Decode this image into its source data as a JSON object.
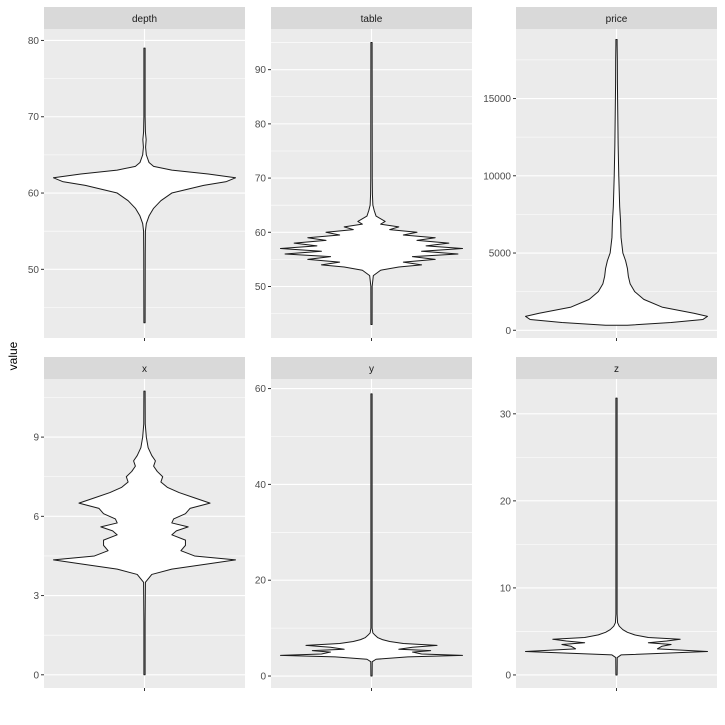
{
  "chart_data": {
    "type": "violin",
    "ylabel": "value",
    "xlabel": "",
    "grid": true,
    "colors": {
      "panel_bg": "#ebebeb",
      "strip_bg": "#d9d9d9",
      "grid": "#ffffff",
      "outline": "#1a1a1a",
      "fill": "#ffffff"
    },
    "facets": [
      {
        "name": "depth",
        "ylim": [
          41,
          81.5
        ],
        "ticks": [
          50,
          60,
          70,
          80
        ],
        "range": [
          43,
          79
        ],
        "density": [
          [
            43,
            0.005
          ],
          [
            52,
            0.008
          ],
          [
            55,
            0.01
          ],
          [
            56,
            0.02
          ],
          [
            57,
            0.05
          ],
          [
            58,
            0.1
          ],
          [
            59,
            0.18
          ],
          [
            60,
            0.3
          ],
          [
            61,
            0.65
          ],
          [
            61.5,
            0.9
          ],
          [
            62,
            1
          ],
          [
            62.5,
            0.7
          ],
          [
            63,
            0.3
          ],
          [
            63.5,
            0.1
          ],
          [
            64,
            0.05
          ],
          [
            65,
            0.02
          ],
          [
            66,
            0.012
          ],
          [
            67,
            0.018
          ],
          [
            68,
            0.01
          ],
          [
            70,
            0.006
          ],
          [
            79,
            0.005
          ]
        ]
      },
      {
        "name": "table",
        "ylim": [
          40.5,
          97.5
        ],
        "ticks": [
          50,
          60,
          70,
          80,
          90
        ],
        "range": [
          43,
          95
        ],
        "density": [
          [
            43,
            0.005
          ],
          [
            50,
            0.007
          ],
          [
            52,
            0.02
          ],
          [
            53,
            0.1
          ],
          [
            53.6,
            0.3
          ],
          [
            54,
            0.55
          ],
          [
            54.5,
            0.35
          ],
          [
            55,
            0.7
          ],
          [
            55.5,
            0.45
          ],
          [
            56,
            0.95
          ],
          [
            56.5,
            0.55
          ],
          [
            57,
            1.0
          ],
          [
            57.5,
            0.6
          ],
          [
            58,
            0.85
          ],
          [
            58.5,
            0.5
          ],
          [
            59,
            0.7
          ],
          [
            59.5,
            0.35
          ],
          [
            60,
            0.5
          ],
          [
            60.5,
            0.2
          ],
          [
            61,
            0.3
          ],
          [
            61.5,
            0.1
          ],
          [
            62,
            0.15
          ],
          [
            63,
            0.05
          ],
          [
            64,
            0.03
          ],
          [
            65,
            0.015
          ],
          [
            67,
            0.01
          ],
          [
            70,
            0.008
          ],
          [
            95,
            0.005
          ]
        ]
      },
      {
        "name": "price",
        "ylim": [
          -500,
          19500
        ],
        "ticks": [
          0,
          5000,
          10000,
          15000
        ],
        "range": [
          326,
          18823
        ],
        "density": [
          [
            326,
            0.12
          ],
          [
            500,
            0.6
          ],
          [
            700,
            0.95
          ],
          [
            900,
            1.0
          ],
          [
            1100,
            0.85
          ],
          [
            1500,
            0.5
          ],
          [
            2000,
            0.3
          ],
          [
            2500,
            0.2
          ],
          [
            3000,
            0.15
          ],
          [
            3500,
            0.13
          ],
          [
            4000,
            0.12
          ],
          [
            4500,
            0.1
          ],
          [
            5000,
            0.07
          ],
          [
            6000,
            0.05
          ],
          [
            7000,
            0.045
          ],
          [
            8000,
            0.035
          ],
          [
            9000,
            0.03
          ],
          [
            10000,
            0.025
          ],
          [
            12000,
            0.018
          ],
          [
            14000,
            0.014
          ],
          [
            16000,
            0.01
          ],
          [
            17500,
            0.009
          ],
          [
            18500,
            0.006
          ],
          [
            18823,
            0.003
          ]
        ]
      },
      {
        "name": "x",
        "ylim": [
          -0.5,
          11.2
        ],
        "ticks": [
          0,
          3,
          6,
          9
        ],
        "range": [
          0,
          10.74
        ],
        "density": [
          [
            0,
            0.005
          ],
          [
            2,
            0.006
          ],
          [
            3.5,
            0.01
          ],
          [
            3.8,
            0.08
          ],
          [
            4.0,
            0.3
          ],
          [
            4.2,
            0.7
          ],
          [
            4.35,
            1.0
          ],
          [
            4.5,
            0.55
          ],
          [
            4.7,
            0.4
          ],
          [
            4.9,
            0.45
          ],
          [
            5.1,
            0.45
          ],
          [
            5.3,
            0.3
          ],
          [
            5.45,
            0.35
          ],
          [
            5.6,
            0.48
          ],
          [
            5.75,
            0.3
          ],
          [
            5.9,
            0.32
          ],
          [
            6.1,
            0.45
          ],
          [
            6.3,
            0.5
          ],
          [
            6.5,
            0.72
          ],
          [
            6.7,
            0.55
          ],
          [
            6.9,
            0.38
          ],
          [
            7.1,
            0.25
          ],
          [
            7.3,
            0.18
          ],
          [
            7.5,
            0.2
          ],
          [
            7.7,
            0.14
          ],
          [
            7.9,
            0.1
          ],
          [
            8.1,
            0.12
          ],
          [
            8.3,
            0.08
          ],
          [
            8.6,
            0.04
          ],
          [
            9.0,
            0.02
          ],
          [
            9.5,
            0.008
          ],
          [
            10.74,
            0.005
          ]
        ]
      },
      {
        "name": "y",
        "ylim": [
          -2.5,
          62
        ],
        "ticks": [
          0,
          20,
          40,
          60
        ],
        "range": [
          0,
          58.9
        ],
        "density": [
          [
            0,
            0.005
          ],
          [
            3,
            0.008
          ],
          [
            3.5,
            0.05
          ],
          [
            4,
            0.4
          ],
          [
            4.3,
            1.0
          ],
          [
            4.6,
            0.55
          ],
          [
            5,
            0.45
          ],
          [
            5.3,
            0.65
          ],
          [
            5.6,
            0.3
          ],
          [
            6,
            0.45
          ],
          [
            6.4,
            0.72
          ],
          [
            6.8,
            0.35
          ],
          [
            7.2,
            0.2
          ],
          [
            7.6,
            0.12
          ],
          [
            8,
            0.07
          ],
          [
            8.5,
            0.04
          ],
          [
            9,
            0.015
          ],
          [
            10,
            0.006
          ],
          [
            58.9,
            0.004
          ]
        ]
      },
      {
        "name": "z",
        "ylim": [
          -1.5,
          34
        ],
        "ticks": [
          0,
          10,
          20,
          30
        ],
        "range": [
          0,
          31.8
        ],
        "density": [
          [
            0,
            0.005
          ],
          [
            2,
            0.008
          ],
          [
            2.3,
            0.05
          ],
          [
            2.7,
            1.0
          ],
          [
            3.0,
            0.45
          ],
          [
            3.3,
            0.5
          ],
          [
            3.5,
            0.6
          ],
          [
            3.7,
            0.35
          ],
          [
            3.9,
            0.55
          ],
          [
            4.1,
            0.7
          ],
          [
            4.3,
            0.35
          ],
          [
            4.6,
            0.2
          ],
          [
            4.9,
            0.12
          ],
          [
            5.2,
            0.07
          ],
          [
            5.6,
            0.03
          ],
          [
            6,
            0.012
          ],
          [
            7,
            0.006
          ],
          [
            31.8,
            0.004
          ]
        ]
      }
    ]
  }
}
